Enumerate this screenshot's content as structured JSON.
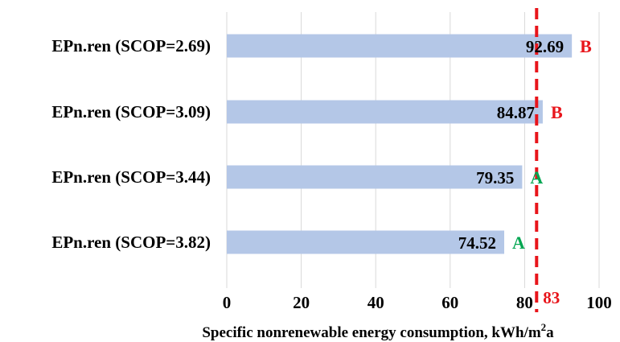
{
  "chart_data": {
    "type": "bar",
    "orientation": "horizontal",
    "categories": [
      "EPn.ren (SCOP=2.69)",
      "EPn.ren (SCOP=3.09)",
      "EPn.ren (SCOP=3.44)",
      "EPn.ren (SCOP=3.82)"
    ],
    "values": [
      92.69,
      84.87,
      79.35,
      74.52
    ],
    "value_labels": [
      "92.69",
      "84.87",
      "79.35",
      "74.52"
    ],
    "energy_classes": [
      "B",
      "B",
      "A",
      "A"
    ],
    "class_colors": {
      "A": "#00a651",
      "B": "#e8151b"
    },
    "bar_color": "#b4c7e7",
    "xlim": [
      0,
      100
    ],
    "x_ticks": [
      0,
      20,
      40,
      60,
      80,
      100
    ],
    "x_tick_labels": [
      "0",
      "20",
      "40",
      "60",
      "80",
      "100"
    ],
    "xlabel_main": "Specific nonrenewable energy consumption, kWh/m",
    "xlabel_sup": "2",
    "xlabel_tail": "a",
    "reference_line": {
      "value": 83,
      "label": "83",
      "color": "#e8151b",
      "style": "dashed"
    },
    "grid": "vertical",
    "legend": "none"
  }
}
